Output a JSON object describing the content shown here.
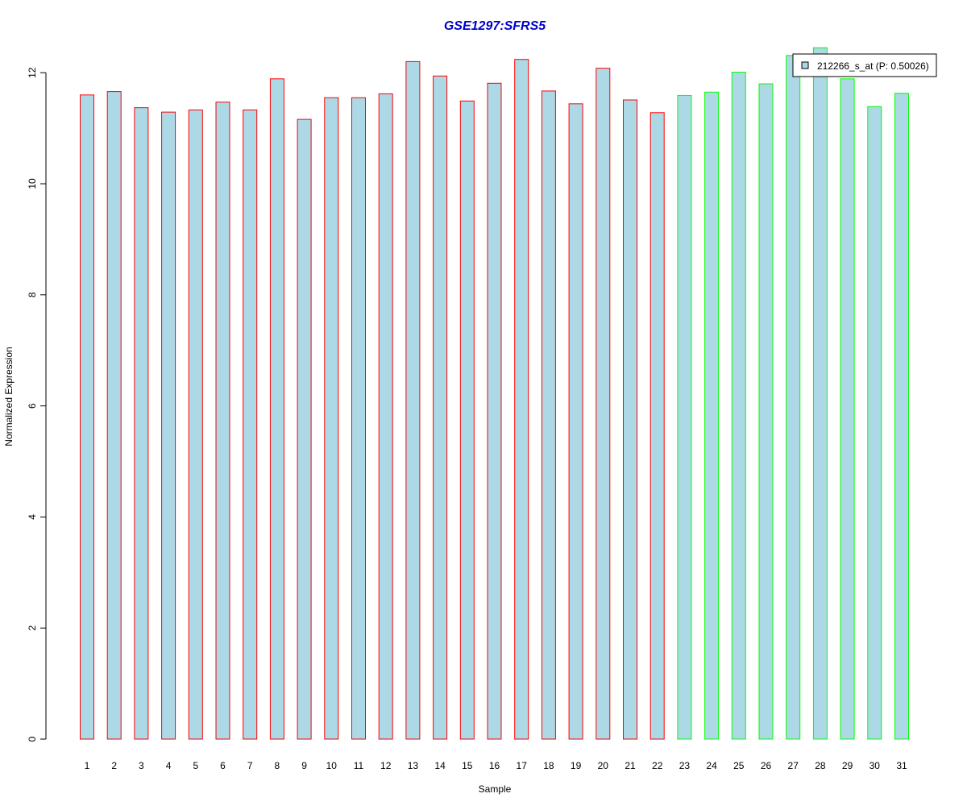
{
  "chart_data": {
    "type": "bar",
    "title": "GSE1297:SFRS5",
    "xlabel": "Sample",
    "ylabel": "Normalized Expression",
    "categories": [
      "1",
      "2",
      "3",
      "4",
      "5",
      "6",
      "7",
      "8",
      "9",
      "10",
      "11",
      "12",
      "13",
      "14",
      "15",
      "16",
      "17",
      "18",
      "19",
      "20",
      "21",
      "22",
      "23",
      "24",
      "25",
      "26",
      "27",
      "28",
      "29",
      "30",
      "31"
    ],
    "series": [
      {
        "name": "212266_s_at (P: 0.50026)",
        "values": [
          11.6,
          11.66,
          11.37,
          11.29,
          11.33,
          11.47,
          11.33,
          11.89,
          11.16,
          11.55,
          11.55,
          11.62,
          12.2,
          11.94,
          11.49,
          11.81,
          12.24,
          11.67,
          11.44,
          12.08,
          11.51,
          11.28,
          11.59,
          11.65,
          12.01,
          11.8,
          12.31,
          12.45,
          11.89,
          11.39,
          11.63
        ],
        "groups": [
          "red",
          "red",
          "red",
          "red",
          "red",
          "red",
          "red",
          "red",
          "red",
          "red",
          "red",
          "red",
          "red",
          "red",
          "red",
          "red",
          "red",
          "red",
          "red",
          "red",
          "red",
          "red",
          "green",
          "green",
          "green",
          "green",
          "green",
          "green",
          "green",
          "green",
          "green"
        ]
      }
    ],
    "yticks": [
      "0",
      "2",
      "4",
      "6",
      "8",
      "10",
      "12"
    ],
    "ylim": [
      0,
      12.5
    ],
    "grid": false,
    "legend_position": "top-right",
    "colors": {
      "bar_fill": "#add8e6",
      "red_group_border": "#ff0000",
      "green_group_border": "#00ff00",
      "title": "#0000cd",
      "axis": "#000000"
    }
  }
}
